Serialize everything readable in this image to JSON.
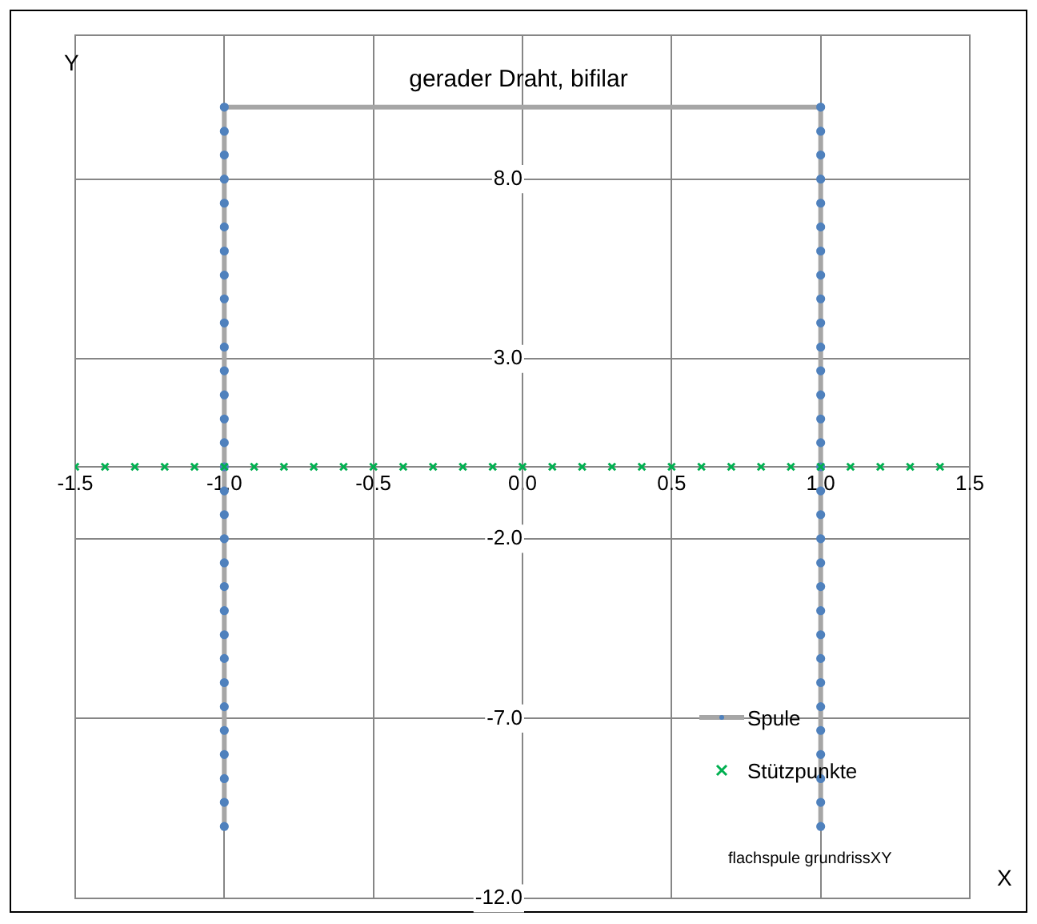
{
  "chart_data": {
    "type": "scatter",
    "title": "gerader Draht, bifilar",
    "xlabel": "X",
    "ylabel": "Y",
    "xlim": [
      -1.5,
      1.5
    ],
    "xticks": [
      {
        "value": -1.5,
        "label": "-1.5"
      },
      {
        "value": -1,
        "label": "-1.0"
      },
      {
        "value": -0.5,
        "label": "-0.5"
      },
      {
        "value": 0,
        "label": "0.0"
      },
      {
        "value": 0.5,
        "label": "0.5"
      },
      {
        "value": 1,
        "label": "1.0"
      },
      {
        "value": 1.5,
        "label": "1.5"
      }
    ],
    "ylim": [
      -12,
      12
    ],
    "yticks": [
      {
        "value": -12,
        "label": "-12.0"
      },
      {
        "value": -7,
        "label": "-7.0"
      },
      {
        "value": -2,
        "label": "-2.0"
      },
      {
        "value": 3,
        "label": "3.0"
      },
      {
        "value": 8,
        "label": "8.0"
      }
    ],
    "grid": true,
    "legend": "bottom right",
    "annotations": [
      "flachspule grundrissXY"
    ],
    "series": [
      {
        "name": "Spule",
        "type": "line",
        "marker": "circle",
        "color": "#a6a6a6",
        "colors": [
          "#4f81bd",
          "#4f81bd",
          "#4f81bd",
          "#4f81bd",
          "#4f81bd",
          "#4f81bd",
          "#4f81bd",
          "#4f81bd",
          "#4f81bd",
          "#4f81bd",
          "#4f81bd",
          "#4f81bd",
          "#4f81bd",
          "#4f81bd",
          "#4f81bd",
          "#4f81bd",
          "#4f81bd",
          "#4f81bd",
          "#4f81bd",
          "#4f81bd",
          "#4f81bd",
          "#4f81bd",
          "#4f81bd",
          "#4f81bd",
          "#4f81bd",
          "#4f81bd",
          "#4f81bd",
          "#4f81bd",
          "#4f81bd",
          "#4f81bd",
          "#4f81bd",
          "#4f81bd",
          "#4f81bd",
          "#4f81bd",
          "#4f81bd",
          "#4f81bd",
          "#4f81bd",
          "#4f81bd",
          "#4f81bd",
          "#4f81bd",
          "#4f81bd",
          "#4f81bd",
          "#4f81bd",
          "#4f81bd",
          "#4f81bd",
          "#4f81bd",
          "#4f81bd",
          "#4f81bd",
          "#4f81bd",
          "#4f81bd",
          "#4f81bd",
          "#4f81bd",
          "#4f81bd",
          "#4f81bd",
          "#4f81bd",
          "#4f81bd",
          "#4f81bd",
          "#4f81bd",
          "#4f81bd",
          "#4f81bd",
          "#4f81bd",
          "#4f81bd"
        ],
        "x": [
          -1,
          -1,
          -1,
          -1,
          -1,
          -1,
          -1,
          -1,
          -1,
          -1,
          -1,
          -1,
          -1,
          -1,
          -1,
          -1,
          -1,
          -1,
          -1,
          -1,
          -1,
          -1,
          -1,
          -1,
          -1,
          -1,
          -1,
          -1,
          -1,
          -1,
          -1,
          1,
          1,
          1,
          1,
          1,
          1,
          1,
          1,
          1,
          1,
          1,
          1,
          1,
          1,
          1,
          1,
          1,
          1,
          1,
          1,
          1,
          1,
          1,
          1,
          1,
          1,
          1,
          1,
          1,
          1,
          1
        ],
        "values": [
          -10,
          -9.33,
          -8.67,
          -8,
          -7.33,
          -6.67,
          -6,
          -5.33,
          -4.67,
          -4,
          -3.33,
          -2.67,
          -2,
          -1.33,
          -0.67,
          0,
          0.67,
          1.33,
          2,
          2.67,
          3.33,
          4,
          4.67,
          5.33,
          6,
          6.67,
          7.33,
          8,
          8.67,
          9.33,
          10,
          10,
          9.33,
          8.67,
          8,
          7.33,
          6.67,
          6,
          5.33,
          4.67,
          4,
          3.33,
          2.67,
          2,
          1.33,
          0.67,
          0,
          -0.67,
          -1.33,
          -2,
          -2.67,
          -3.33,
          -4,
          -4.67,
          -5.33,
          -6,
          -6.67,
          -7.33,
          -8,
          -8.67,
          -9.33,
          -10
        ]
      },
      {
        "name": "Stützpunkte",
        "type": "scatter",
        "marker": "cross",
        "color": "#00b050",
        "x": [
          -1.5,
          -1.4,
          -1.3,
          -1.2,
          -1.1,
          -1,
          -0.9,
          -0.8,
          -0.7,
          -0.6,
          -0.5,
          -0.4,
          -0.3,
          -0.2,
          -0.1,
          0,
          0.1,
          0.2,
          0.3,
          0.4,
          0.5,
          0.6,
          0.7,
          0.8,
          0.9,
          1,
          1.1,
          1.2,
          1.3,
          1.4
        ],
        "values": [
          0,
          0,
          0,
          0,
          0,
          0,
          0,
          0,
          0,
          0,
          0,
          0,
          0,
          0,
          0,
          0,
          0,
          0,
          0,
          0,
          0,
          0,
          0,
          0,
          0,
          0,
          0,
          0,
          0,
          0
        ]
      }
    ]
  }
}
